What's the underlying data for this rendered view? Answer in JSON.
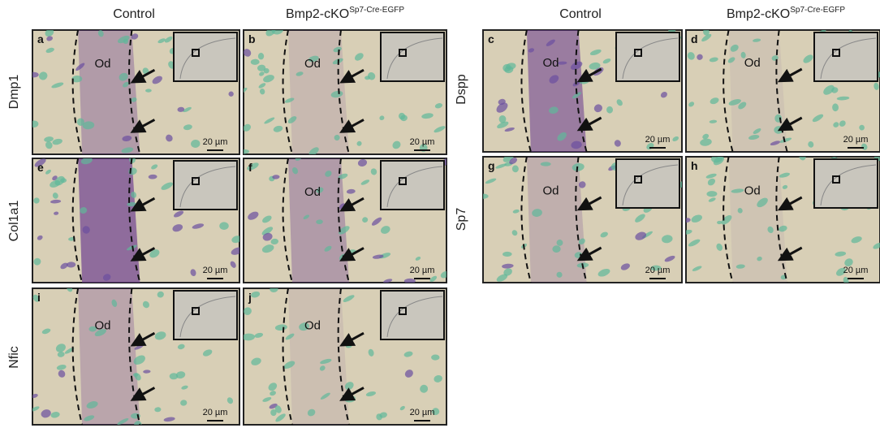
{
  "columns": [
    {
      "title": "Control"
    },
    {
      "title": "Bmp2-cKO",
      "superscript": "Sp7-Cre-EGFP"
    },
    {
      "title": "Control"
    },
    {
      "title": "Bmp2-cKO",
      "superscript": "Sp7-Cre-EGFP"
    }
  ],
  "rows": [
    "Dmp1",
    "Col1a1",
    "Nfic",
    "Dspp",
    "Sp7"
  ],
  "panels": [
    {
      "letter": "a",
      "od": "Od",
      "scale": "20 µm"
    },
    {
      "letter": "b",
      "od": "Od",
      "scale": "20 µm"
    },
    {
      "letter": "c",
      "od": "Od",
      "scale": "20 µm"
    },
    {
      "letter": "d",
      "od": "Od",
      "scale": "20 µm"
    },
    {
      "letter": "e",
      "scale": "20 µm"
    },
    {
      "letter": "f",
      "od": "Od",
      "scale": "20 µm"
    },
    {
      "letter": "g",
      "od": "Od",
      "scale": "20 µm"
    },
    {
      "letter": "h",
      "od": "Od",
      "scale": "20 µm"
    },
    {
      "letter": "i",
      "od": "Od",
      "scale": "20 µm"
    },
    {
      "letter": "j",
      "od": "Od",
      "scale": "20 µm"
    }
  ]
}
